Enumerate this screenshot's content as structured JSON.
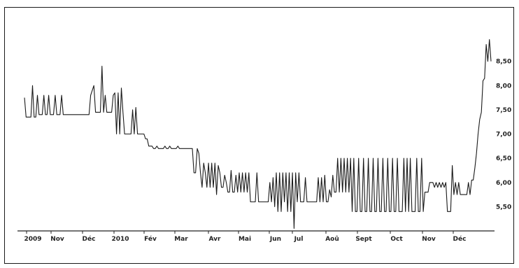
{
  "chart_data": {
    "type": "line",
    "title": "",
    "xlabel": "",
    "ylabel": "",
    "x_tick_labels": [
      "2009",
      "Nov",
      "Déc",
      "2010",
      "Fév",
      "Mar",
      "Avr",
      "Mai",
      "Jun",
      "Jul",
      "Aoû",
      "Sept",
      "Oct",
      "Nov",
      "Déc"
    ],
    "y_tick_labels": [
      "5,50",
      "6,00",
      "6,50",
      "7,00",
      "7,50",
      "8,00",
      "8,50"
    ],
    "y_ticks": [
      5.5,
      6.0,
      6.5,
      7.0,
      7.5,
      8.0,
      8.5
    ],
    "ylim": [
      5.0,
      8.9
    ],
    "grid": false,
    "series": [
      {
        "values": [
          7.75,
          7.35,
          7.35,
          7.35,
          7.35,
          8.0,
          7.35,
          7.35,
          7.8,
          7.4,
          7.4,
          7.4,
          7.8,
          7.4,
          7.4,
          7.8,
          7.4,
          7.4,
          7.4,
          7.8,
          7.4,
          7.4,
          7.4,
          7.8,
          7.4,
          7.4,
          7.4,
          7.4,
          7.4,
          7.4,
          7.4,
          7.4,
          7.4,
          7.4,
          7.4,
          7.4,
          7.4,
          7.4,
          7.4,
          7.4,
          7.4,
          7.8,
          7.9,
          8.0,
          7.45,
          7.45,
          7.45,
          7.45,
          8.4,
          7.45,
          7.8,
          7.45,
          7.45,
          7.45,
          7.45,
          7.8,
          7.85,
          7.0,
          7.85,
          7.0,
          7.95,
          7.45,
          7.0,
          7.0,
          7.0,
          7.0,
          7.0,
          7.5,
          7.0,
          7.55,
          7.0,
          7.0,
          7.0,
          7.0,
          7.0,
          6.9,
          6.9,
          6.75,
          6.75,
          6.75,
          6.7,
          6.7,
          6.75,
          6.7,
          6.7,
          6.7,
          6.7,
          6.75,
          6.7,
          6.7,
          6.75,
          6.7,
          6.7,
          6.7,
          6.7,
          6.75,
          6.7,
          6.7,
          6.7,
          6.7,
          6.7,
          6.7,
          6.7,
          6.7,
          6.7,
          6.2,
          6.2,
          6.7,
          6.6,
          6.2,
          5.9,
          6.4,
          6.2,
          5.9,
          6.4,
          5.9,
          6.4,
          5.9,
          6.4,
          5.75,
          6.35,
          6.2,
          5.9,
          5.9,
          6.15,
          6.0,
          5.8,
          5.8,
          6.25,
          5.8,
          5.8,
          6.15,
          5.8,
          6.2,
          5.8,
          6.2,
          5.8,
          6.2,
          5.8,
          6.2,
          5.6,
          5.6,
          5.6,
          5.6,
          6.2,
          5.6,
          5.6,
          5.6,
          5.6,
          5.6,
          5.6,
          5.6,
          6.0,
          5.6,
          6.1,
          5.5,
          6.2,
          5.4,
          6.2,
          5.4,
          6.2,
          5.6,
          6.2,
          5.4,
          6.2,
          5.4,
          6.2,
          5.05,
          6.2,
          5.6,
          6.2,
          5.6,
          5.6,
          5.6,
          6.1,
          5.6,
          5.6,
          5.6,
          5.6,
          5.6,
          5.6,
          5.6,
          6.1,
          5.6,
          6.1,
          5.6,
          6.15,
          5.6,
          5.6,
          5.85,
          5.7,
          6.15,
          5.8,
          5.8,
          6.5,
          5.8,
          6.5,
          5.8,
          6.5,
          5.8,
          6.5,
          5.8,
          6.5,
          5.4,
          6.5,
          5.4,
          5.4,
          6.5,
          5.4,
          5.4,
          6.5,
          5.4,
          5.4,
          6.5,
          5.4,
          5.4,
          6.5,
          5.4,
          5.4,
          6.5,
          5.4,
          5.4,
          6.5,
          5.4,
          5.4,
          6.5,
          5.4,
          5.4,
          6.5,
          5.4,
          5.4,
          6.5,
          5.4,
          5.4,
          5.4,
          6.5,
          5.4,
          6.5,
          5.4,
          6.5,
          5.4,
          5.4,
          5.4,
          6.5,
          5.4,
          5.4,
          6.5,
          5.4,
          5.8,
          5.8,
          5.8,
          6.0,
          6.0,
          6.0,
          5.9,
          6.0,
          5.9,
          6.0,
          5.9,
          6.0,
          5.9,
          6.0,
          5.4,
          5.4,
          5.4,
          6.35,
          5.75,
          6.0,
          5.75,
          6.0,
          5.75,
          5.75,
          5.75,
          5.75,
          5.75,
          6.0,
          5.75,
          6.05,
          6.05,
          6.3,
          6.6,
          7.0,
          7.3,
          7.45,
          8.1,
          8.15,
          8.85,
          8.5,
          8.95,
          8.5
        ]
      }
    ]
  }
}
